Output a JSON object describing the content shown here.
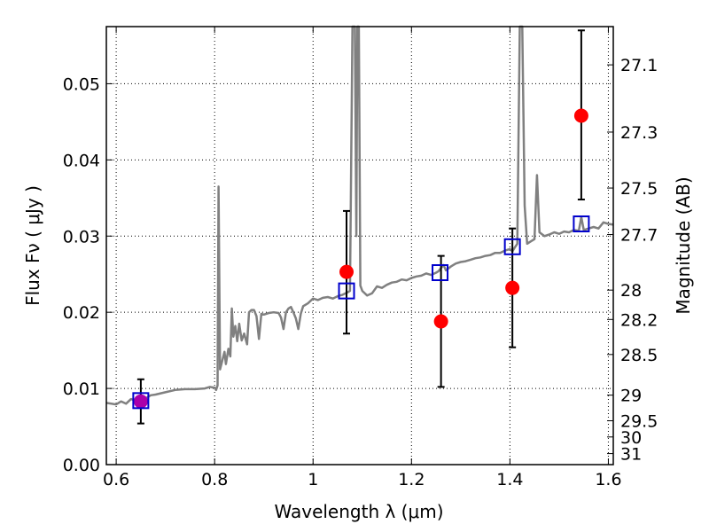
{
  "chart_data": {
    "type": "scatter",
    "xlabel": "Wavelength  λ (μm)",
    "ylabel": "Flux  Fν  ( μJy )",
    "ylabel_right": "Magnitude (AB)",
    "xlim": [
      0.58,
      1.61
    ],
    "ylim": [
      0.0,
      0.0575
    ],
    "grid": true,
    "colors": {
      "spectrum": "#808080",
      "filters": "#0000cc",
      "photometry": "#ff0000",
      "overlap": "#aa00aa",
      "errorbars": "#000000"
    },
    "x_ticks": [
      {
        "value": 0.6,
        "label": "0.6"
      },
      {
        "value": 0.8,
        "label": "0.8"
      },
      {
        "value": 1.0,
        "label": "1"
      },
      {
        "value": 1.2,
        "label": "1.2"
      },
      {
        "value": 1.4,
        "label": "1.4"
      },
      {
        "value": 1.6,
        "label": "1.6"
      }
    ],
    "y_ticks": [
      {
        "value": 0.0,
        "label": "0.00"
      },
      {
        "value": 0.01,
        "label": "0.01"
      },
      {
        "value": 0.02,
        "label": "0.02"
      },
      {
        "value": 0.03,
        "label": "0.03"
      },
      {
        "value": 0.04,
        "label": "0.04"
      },
      {
        "value": 0.05,
        "label": "0.05"
      }
    ],
    "mag_ticks": [
      {
        "value": 27.1,
        "label": "27.1"
      },
      {
        "value": 27.3,
        "label": "27.3"
      },
      {
        "value": 27.5,
        "label": "27.5"
      },
      {
        "value": 27.7,
        "label": "27.7"
      },
      {
        "value": 28.0,
        "label": "28"
      },
      {
        "value": 28.2,
        "label": "28.2"
      },
      {
        "value": 28.5,
        "label": "28.5"
      },
      {
        "value": 29.0,
        "label": "29"
      },
      {
        "value": 29.5,
        "label": "29.5"
      },
      {
        "value": 30.0,
        "label": "30"
      },
      {
        "value": 31.0,
        "label": "31"
      }
    ],
    "series": [
      {
        "type": "line",
        "points": [
          [
            0.58,
            0.0081
          ],
          [
            0.6,
            0.0079
          ],
          [
            0.61,
            0.0083
          ],
          [
            0.62,
            0.008
          ],
          [
            0.63,
            0.0086
          ],
          [
            0.64,
            0.0084
          ],
          [
            0.65,
            0.0088
          ],
          [
            0.66,
            0.0087
          ],
          [
            0.67,
            0.0091
          ],
          [
            0.68,
            0.0092
          ],
          [
            0.7,
            0.0095
          ],
          [
            0.72,
            0.0098
          ],
          [
            0.74,
            0.0099
          ],
          [
            0.76,
            0.0099
          ],
          [
            0.78,
            0.01
          ],
          [
            0.79,
            0.0102
          ],
          [
            0.8,
            0.0101
          ],
          [
            0.803,
            0.0098
          ],
          [
            0.806,
            0.0104
          ],
          [
            0.808,
            0.0365
          ],
          [
            0.811,
            0.0125
          ],
          [
            0.815,
            0.0135
          ],
          [
            0.82,
            0.0148
          ],
          [
            0.823,
            0.0132
          ],
          [
            0.828,
            0.0152
          ],
          [
            0.832,
            0.0142
          ],
          [
            0.835,
            0.0205
          ],
          [
            0.838,
            0.0168
          ],
          [
            0.842,
            0.0182
          ],
          [
            0.846,
            0.0162
          ],
          [
            0.85,
            0.0185
          ],
          [
            0.855,
            0.0163
          ],
          [
            0.86,
            0.0172
          ],
          [
            0.866,
            0.0158
          ],
          [
            0.87,
            0.02
          ],
          [
            0.875,
            0.0203
          ],
          [
            0.88,
            0.0203
          ],
          [
            0.885,
            0.0195
          ],
          [
            0.89,
            0.0165
          ],
          [
            0.895,
            0.0198
          ],
          [
            0.9,
            0.0197
          ],
          [
            0.91,
            0.0199
          ],
          [
            0.92,
            0.02
          ],
          [
            0.93,
            0.0199
          ],
          [
            0.935,
            0.0193
          ],
          [
            0.94,
            0.0178
          ],
          [
            0.945,
            0.02
          ],
          [
            0.95,
            0.0205
          ],
          [
            0.955,
            0.0207
          ],
          [
            0.96,
            0.02
          ],
          [
            0.965,
            0.0192
          ],
          [
            0.97,
            0.0178
          ],
          [
            0.975,
            0.0198
          ],
          [
            0.98,
            0.0208
          ],
          [
            0.99,
            0.0212
          ],
          [
            1.0,
            0.0218
          ],
          [
            1.01,
            0.0216
          ],
          [
            1.02,
            0.0219
          ],
          [
            1.03,
            0.022
          ],
          [
            1.04,
            0.0218
          ],
          [
            1.05,
            0.0221
          ],
          [
            1.06,
            0.0223
          ],
          [
            1.07,
            0.0226
          ],
          [
            1.075,
            0.0228
          ],
          [
            1.08,
            0.0575
          ],
          [
            1.085,
            0.0575
          ],
          [
            1.088,
            0.03
          ],
          [
            1.09,
            0.0575
          ],
          [
            1.093,
            0.0575
          ],
          [
            1.096,
            0.0235
          ],
          [
            1.1,
            0.0228
          ],
          [
            1.11,
            0.0222
          ],
          [
            1.12,
            0.0225
          ],
          [
            1.13,
            0.0234
          ],
          [
            1.14,
            0.0232
          ],
          [
            1.15,
            0.0236
          ],
          [
            1.16,
            0.0239
          ],
          [
            1.17,
            0.024
          ],
          [
            1.18,
            0.0243
          ],
          [
            1.19,
            0.0242
          ],
          [
            1.2,
            0.0245
          ],
          [
            1.21,
            0.0247
          ],
          [
            1.22,
            0.0248
          ],
          [
            1.23,
            0.0251
          ],
          [
            1.24,
            0.0249
          ],
          [
            1.25,
            0.0252
          ],
          [
            1.255,
            0.0254
          ],
          [
            1.26,
            0.0258
          ],
          [
            1.265,
            0.0262
          ],
          [
            1.27,
            0.0255
          ],
          [
            1.28,
            0.026
          ],
          [
            1.29,
            0.0264
          ],
          [
            1.3,
            0.0266
          ],
          [
            1.31,
            0.0267
          ],
          [
            1.32,
            0.0269
          ],
          [
            1.33,
            0.0271
          ],
          [
            1.34,
            0.0272
          ],
          [
            1.35,
            0.0274
          ],
          [
            1.36,
            0.0275
          ],
          [
            1.37,
            0.0278
          ],
          [
            1.38,
            0.0278
          ],
          [
            1.39,
            0.0281
          ],
          [
            1.4,
            0.0283
          ],
          [
            1.405,
            0.028
          ],
          [
            1.41,
            0.0285
          ],
          [
            1.415,
            0.029
          ],
          [
            1.42,
            0.0575
          ],
          [
            1.425,
            0.0575
          ],
          [
            1.43,
            0.034
          ],
          [
            1.435,
            0.029
          ],
          [
            1.44,
            0.0292
          ],
          [
            1.45,
            0.0296
          ],
          [
            1.455,
            0.038
          ],
          [
            1.46,
            0.0305
          ],
          [
            1.47,
            0.03
          ],
          [
            1.48,
            0.0302
          ],
          [
            1.49,
            0.0305
          ],
          [
            1.5,
            0.0303
          ],
          [
            1.51,
            0.0306
          ],
          [
            1.52,
            0.0305
          ],
          [
            1.53,
            0.0308
          ],
          [
            1.54,
            0.0307
          ],
          [
            1.545,
            0.0325
          ],
          [
            1.55,
            0.0308
          ],
          [
            1.56,
            0.031
          ],
          [
            1.57,
            0.0312
          ],
          [
            1.58,
            0.031
          ],
          [
            1.59,
            0.0318
          ],
          [
            1.6,
            0.0316
          ],
          [
            1.61,
            0.0315
          ]
        ]
      },
      {
        "type": "errorbar-points",
        "points": [
          {
            "x": 0.65,
            "y": 0.0083,
            "yerr_low": 0.0054,
            "yerr_high": 0.0112
          },
          {
            "x": 1.068,
            "y": 0.0253,
            "yerr_low": 0.0172,
            "yerr_high": 0.0333
          },
          {
            "x": 1.26,
            "y": 0.0188,
            "yerr_low": 0.0102,
            "yerr_high": 0.0274
          },
          {
            "x": 1.405,
            "y": 0.0232,
            "yerr_low": 0.0154,
            "yerr_high": 0.031
          },
          {
            "x": 1.545,
            "y": 0.0458,
            "yerr_low": 0.0348,
            "yerr_high": 0.057
          }
        ]
      },
      {
        "type": "square-markers",
        "points": [
          {
            "x": 0.65,
            "y": 0.0084
          },
          {
            "x": 1.068,
            "y": 0.0228
          },
          {
            "x": 1.258,
            "y": 0.0252
          },
          {
            "x": 1.405,
            "y": 0.0286
          },
          {
            "x": 1.545,
            "y": 0.0316
          }
        ]
      }
    ]
  }
}
